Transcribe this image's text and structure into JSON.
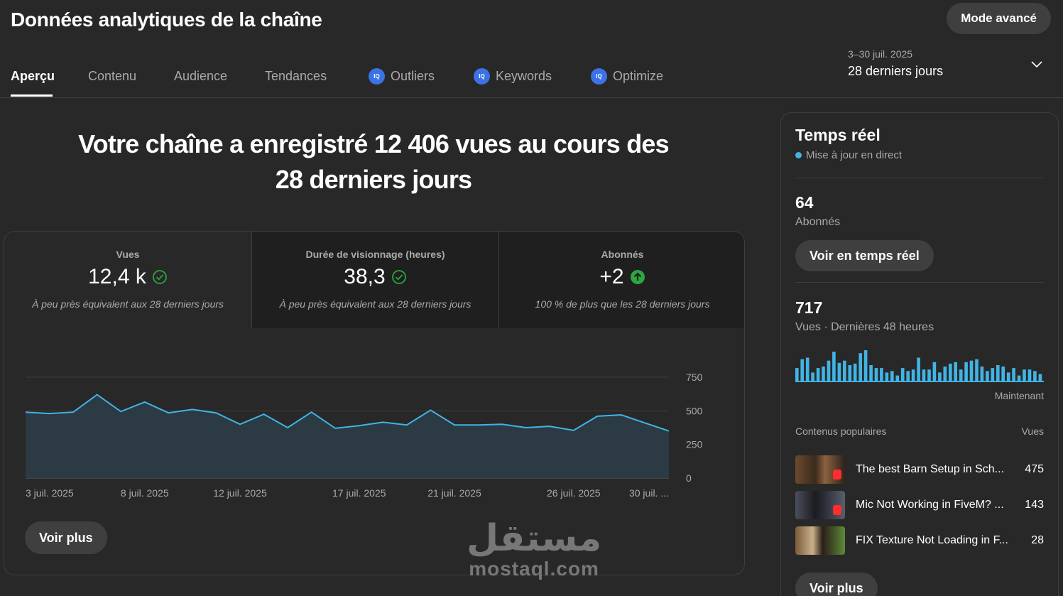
{
  "header": {
    "title": "Données analytiques de la chaîne",
    "advanced_button": "Mode avancé"
  },
  "tabs": [
    {
      "label": "Aperçu",
      "active": true,
      "icon": null
    },
    {
      "label": "Contenu",
      "active": false,
      "icon": null
    },
    {
      "label": "Audience",
      "active": false,
      "icon": null
    },
    {
      "label": "Tendances",
      "active": false,
      "icon": null
    },
    {
      "label": "Outliers",
      "active": false,
      "icon": "iq-extension-icon"
    },
    {
      "label": "Keywords",
      "active": false,
      "icon": "iq-extension-icon"
    },
    {
      "label": "Optimize",
      "active": false,
      "icon": "iq-extension-icon"
    }
  ],
  "iq_badge": "IQ",
  "period": {
    "range": "3–30 juil. 2025",
    "label": "28 derniers jours"
  },
  "headline": {
    "line1": "Votre chaîne a enregistré 12 406 vues au cours des",
    "line2": "28 derniers jours"
  },
  "metrics": [
    {
      "label": "Vues",
      "value": "12,4 k",
      "note": "À peu près équivalent aux 28 derniers jours",
      "status": "check"
    },
    {
      "label": "Durée de visionnage (heures)",
      "value": "38,3",
      "note": "À peu près équivalent aux 28 derniers jours",
      "status": "check"
    },
    {
      "label": "Abonnés",
      "value": "+2",
      "note": "100 % de plus que les 28 derniers jours",
      "status": "up"
    }
  ],
  "colors": {
    "accent_line": "#41b4e6",
    "check_green": "#2ba640",
    "up_green": "#2ba640",
    "iq_blue": "#3b73e6",
    "live_dot": "#41b4e6"
  },
  "chart_data": {
    "type": "area",
    "x": [
      "3 juil.",
      "4 juil.",
      "5 juil.",
      "6 juil.",
      "7 juil.",
      "8 juil.",
      "9 juil.",
      "10 juil.",
      "11 juil.",
      "12 juil.",
      "13 juil.",
      "14 juil.",
      "15 juil.",
      "16 juil.",
      "17 juil.",
      "18 juil.",
      "19 juil.",
      "20 juil.",
      "21 juil.",
      "22 juil.",
      "23 juil.",
      "24 juil.",
      "25 juil.",
      "26 juil.",
      "27 juil.",
      "28 juil.",
      "29 juil.",
      "30 juil."
    ],
    "values": [
      490,
      480,
      490,
      620,
      495,
      565,
      485,
      510,
      485,
      400,
      475,
      375,
      490,
      370,
      390,
      415,
      395,
      505,
      395,
      395,
      400,
      375,
      385,
      355,
      460,
      470,
      410,
      350
    ],
    "tick_labels": [
      "3 juil. 2025",
      "8 juil. 2025",
      "12 juil. 2025",
      "17 juil. 2025",
      "21 juil. 2025",
      "26 juil. 2025",
      "30 juil. ..."
    ],
    "tick_index": [
      0,
      5,
      9,
      14,
      18,
      23,
      27
    ],
    "yticks": [
      "750",
      "500",
      "250",
      "0"
    ],
    "ytick_values": [
      750,
      500,
      250,
      0
    ],
    "ylim": [
      0,
      750
    ],
    "grid": true
  },
  "overview_more": "Voir plus",
  "realtime": {
    "title": "Temps réel",
    "subtitle": "Mise à jour en direct",
    "subscribers_value": "64",
    "subscribers_label": "Abonnés",
    "realtime_button": "Voir en temps réel",
    "views_value": "717",
    "views_label": "Vues · Dernières 48 heures",
    "now_label": "Maintenant",
    "bars_chart": {
      "type": "bar",
      "values": [
        18,
        30,
        32,
        12,
        18,
        20,
        28,
        40,
        25,
        28,
        22,
        24,
        38,
        42,
        22,
        18,
        18,
        12,
        14,
        8,
        18,
        14,
        16,
        32,
        16,
        16,
        26,
        12,
        20,
        24,
        26,
        16,
        26,
        28,
        30,
        20,
        14,
        18,
        22,
        20,
        12,
        18,
        8,
        16,
        16,
        14,
        10
      ]
    },
    "popular_header": "Contenus populaires",
    "popular_views_header": "Vues",
    "popular": [
      {
        "title": "The best Barn Setup in Sch...",
        "views": "475"
      },
      {
        "title": "Mic Not Working in FiveM? ...",
        "views": "143"
      },
      {
        "title": "FIX Texture Not Loading in F...",
        "views": "28"
      }
    ],
    "more_button": "Voir plus"
  },
  "watermark": {
    "arabic": "مستقل",
    "latin": "mostaql.com"
  }
}
